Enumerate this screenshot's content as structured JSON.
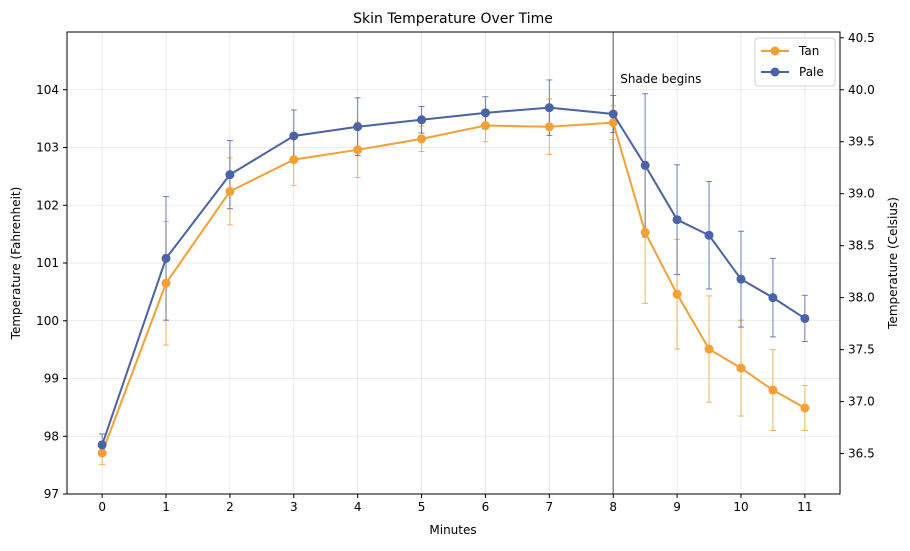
{
  "chart_data": {
    "type": "line",
    "title": "Skin Temperature Over Time",
    "xlabel": "Minutes",
    "ylabel": "Temperature (Fahrenheit)",
    "ylabel_right": "Temperature (Celsius)",
    "xlim": [
      -0.55,
      11.55
    ],
    "ylim": [
      97,
      105
    ],
    "xticks": [
      0,
      1,
      2,
      3,
      4,
      5,
      6,
      7,
      8,
      9,
      10,
      11
    ],
    "yticks": [
      97,
      98,
      99,
      100,
      101,
      102,
      103,
      104
    ],
    "yticks_right": [
      36.5,
      37.0,
      37.5,
      38.0,
      38.5,
      39.0,
      39.5,
      40.0,
      40.5
    ],
    "grid": true,
    "legend_position": "top-right",
    "annotation": {
      "x": 8,
      "text": "Shade begins",
      "line_color": "#8c8c8c"
    },
    "x": [
      0,
      1,
      2,
      3,
      4,
      5,
      6,
      7,
      8,
      8.5,
      9,
      9.5,
      10,
      10.5,
      11
    ],
    "series": [
      {
        "name": "Tan",
        "color": "#f4a035",
        "values": [
          97.71,
          100.65,
          102.24,
          102.79,
          102.96,
          103.15,
          103.38,
          103.36,
          103.43,
          101.53,
          100.46,
          99.51,
          99.18,
          98.8,
          98.49
        ],
        "errors": [
          0.2,
          1.07,
          0.58,
          0.45,
          0.48,
          0.22,
          0.28,
          0.48,
          0.29,
          1.23,
          0.95,
          0.92,
          0.83,
          0.7,
          0.39
        ]
      },
      {
        "name": "Pale",
        "color": "#4a62a8",
        "values": [
          97.85,
          101.08,
          102.53,
          103.2,
          103.36,
          103.48,
          103.6,
          103.69,
          103.58,
          102.69,
          101.75,
          101.48,
          100.72,
          100.4,
          100.04
        ],
        "errors": [
          0.19,
          1.07,
          0.59,
          0.45,
          0.5,
          0.23,
          0.28,
          0.48,
          0.32,
          1.24,
          0.95,
          0.93,
          0.83,
          0.68,
          0.4
        ]
      }
    ]
  }
}
